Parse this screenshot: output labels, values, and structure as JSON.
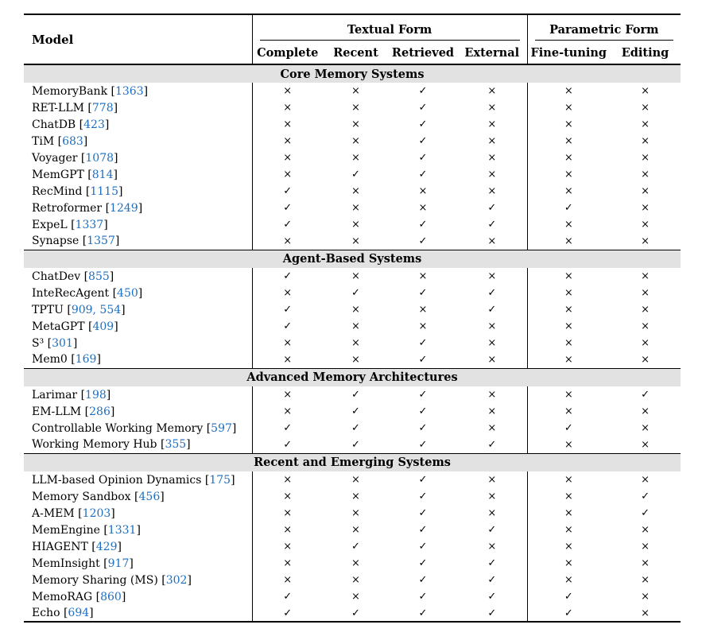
{
  "header": {
    "model": "Model",
    "groups": [
      {
        "label": "Textual Form",
        "cols": [
          "Complete",
          "Recent",
          "Retrieved",
          "External"
        ]
      },
      {
        "label": "Parametric Form",
        "cols": [
          "Fine-tuning",
          "Editing"
        ]
      }
    ]
  },
  "marks": {
    "yes": "✓",
    "no": "×"
  },
  "colors": {
    "cite": "#1e6fc0",
    "section_bg": "#e2e2e2"
  },
  "sections": [
    {
      "title": "Core Memory Systems",
      "rows": [
        {
          "model": "MemoryBank",
          "cite": "1363",
          "cells": [
            "×",
            "×",
            "✓",
            "×",
            "×",
            "×"
          ]
        },
        {
          "model": "RET-LLM",
          "cite": "778",
          "cells": [
            "×",
            "×",
            "✓",
            "×",
            "×",
            "×"
          ]
        },
        {
          "model": "ChatDB",
          "cite": "423",
          "cells": [
            "×",
            "×",
            "✓",
            "×",
            "×",
            "×"
          ]
        },
        {
          "model": "TiM",
          "cite": "683",
          "cells": [
            "×",
            "×",
            "✓",
            "×",
            "×",
            "×"
          ]
        },
        {
          "model": "Voyager",
          "cite": "1078",
          "cells": [
            "×",
            "×",
            "✓",
            "×",
            "×",
            "×"
          ]
        },
        {
          "model": "MemGPT",
          "cite": "814",
          "cells": [
            "×",
            "✓",
            "✓",
            "×",
            "×",
            "×"
          ]
        },
        {
          "model": "RecMind",
          "cite": "1115",
          "cells": [
            "✓",
            "×",
            "×",
            "×",
            "×",
            "×"
          ]
        },
        {
          "model": "Retroformer",
          "cite": "1249",
          "cells": [
            "✓",
            "×",
            "×",
            "✓",
            "✓",
            "×"
          ]
        },
        {
          "model": "ExpeL",
          "cite": "1337",
          "cells": [
            "✓",
            "×",
            "✓",
            "✓",
            "×",
            "×"
          ]
        },
        {
          "model": "Synapse",
          "cite": "1357",
          "cells": [
            "×",
            "×",
            "✓",
            "×",
            "×",
            "×"
          ]
        }
      ]
    },
    {
      "title": "Agent-Based Systems",
      "rows": [
        {
          "model": "ChatDev",
          "cite": "855",
          "cells": [
            "✓",
            "×",
            "×",
            "×",
            "×",
            "×"
          ]
        },
        {
          "model": "InteRecAgent",
          "cite": "450",
          "cells": [
            "×",
            "✓",
            "✓",
            "✓",
            "×",
            "×"
          ]
        },
        {
          "model": "TPTU",
          "cite": "909, 554",
          "cells": [
            "✓",
            "×",
            "×",
            "✓",
            "×",
            "×"
          ]
        },
        {
          "model": "MetaGPT",
          "cite": "409",
          "cells": [
            "✓",
            "×",
            "×",
            "×",
            "×",
            "×"
          ]
        },
        {
          "model": "S³",
          "cite": "301",
          "cells": [
            "×",
            "×",
            "✓",
            "×",
            "×",
            "×"
          ]
        },
        {
          "model": "Mem0",
          "cite": "169",
          "cells": [
            "×",
            "×",
            "✓",
            "×",
            "×",
            "×"
          ]
        }
      ]
    },
    {
      "title": "Advanced Memory Architectures",
      "rows": [
        {
          "model": "Larimar",
          "cite": "198",
          "cells": [
            "×",
            "✓",
            "✓",
            "×",
            "×",
            "✓"
          ]
        },
        {
          "model": "EM-LLM",
          "cite": "286",
          "cells": [
            "×",
            "✓",
            "✓",
            "×",
            "×",
            "×"
          ]
        },
        {
          "model": "Controllable Working Memory",
          "cite": "597",
          "cells": [
            "✓",
            "✓",
            "✓",
            "×",
            "✓",
            "×"
          ]
        },
        {
          "model": "Working Memory Hub",
          "cite": "355",
          "cells": [
            "✓",
            "✓",
            "✓",
            "✓",
            "×",
            "×"
          ]
        }
      ]
    },
    {
      "title": "Recent and Emerging Systems",
      "rows": [
        {
          "model": "LLM-based Opinion Dynamics",
          "cite": "175",
          "cells": [
            "×",
            "×",
            "✓",
            "×",
            "×",
            "×"
          ]
        },
        {
          "model": "Memory Sandbox",
          "cite": "456",
          "cells": [
            "×",
            "×",
            "✓",
            "×",
            "×",
            "✓"
          ]
        },
        {
          "model": "A-MEM",
          "cite": "1203",
          "cells": [
            "×",
            "×",
            "✓",
            "×",
            "×",
            "✓"
          ]
        },
        {
          "model": "MemEngine",
          "cite": "1331",
          "cells": [
            "×",
            "×",
            "✓",
            "✓",
            "×",
            "×"
          ]
        },
        {
          "model": "HIAGENT",
          "cite": "429",
          "cells": [
            "×",
            "✓",
            "✓",
            "×",
            "×",
            "×"
          ]
        },
        {
          "model": "MemInsight",
          "cite": "917",
          "cells": [
            "×",
            "×",
            "✓",
            "✓",
            "×",
            "×"
          ]
        },
        {
          "model": "Memory Sharing (MS)",
          "cite": "302",
          "cells": [
            "×",
            "×",
            "✓",
            "✓",
            "×",
            "×"
          ]
        },
        {
          "model": "MemoRAG",
          "cite": "860",
          "cells": [
            "✓",
            "×",
            "✓",
            "✓",
            "✓",
            "×"
          ]
        },
        {
          "model": "Echo",
          "cite": "694",
          "cells": [
            "✓",
            "✓",
            "✓",
            "✓",
            "✓",
            "×"
          ]
        }
      ]
    }
  ]
}
